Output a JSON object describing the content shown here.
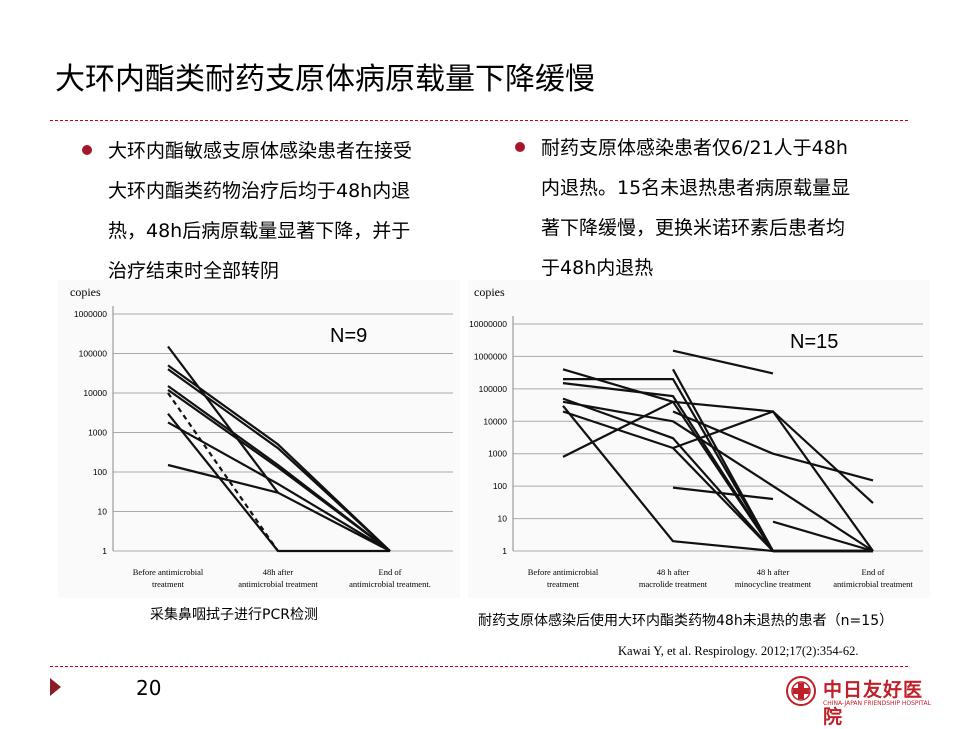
{
  "title": "大环内酯类耐药支原体病原载量下降缓慢",
  "bullets": {
    "left": [
      "大环内酯敏感支原体感染患者在接受",
      "大环内酯类药物治疗后均于48h内退",
      "热，48h后病原载量显著下降，并于",
      "治疗结束时全部转阴"
    ],
    "right": [
      "耐药支原体感染患者仅6/21人于48h",
      "内退热。15名未退热患者病原载量显",
      "著下降缓慢，更换米诺环素后患者均",
      "于48h内退热"
    ]
  },
  "colors": {
    "accent": "#c3001b",
    "bullet": "#a5182c",
    "logo": "#c0202a"
  },
  "chart_data": [
    {
      "type": "line",
      "ylabel": "copies",
      "scale": "log",
      "annotation": "N=9",
      "yticks": [
        "1",
        "10",
        "100",
        "1000",
        "10000",
        "100000",
        "1000000"
      ],
      "categories": [
        [
          "Before antimicrobial",
          "treatment"
        ],
        [
          "48h after",
          "antimicrobial treatment"
        ],
        [
          "End of",
          "antimicrobial treatment."
        ]
      ],
      "ylim": [
        1,
        3000000
      ],
      "series": [
        {
          "values": [
            150000,
            30,
            null
          ]
        },
        {
          "values": [
            50000,
            500,
            1
          ]
        },
        {
          "values": [
            40000,
            400,
            1
          ]
        },
        {
          "values": [
            15000,
            150,
            1
          ]
        },
        {
          "values": [
            12000,
            130,
            1
          ]
        },
        {
          "values": [
            3000,
            1,
            1
          ]
        },
        {
          "values": [
            1800,
            50,
            1
          ]
        },
        {
          "values": [
            150,
            30,
            1
          ]
        },
        {
          "values": [
            10000,
            1,
            null
          ],
          "style": "dashed"
        }
      ]
    },
    {
      "type": "line",
      "ylabel": "copies",
      "scale": "log",
      "annotation": "N=15",
      "yticks": [
        "1",
        "10",
        "100",
        "1000",
        "10000",
        "100000",
        "1000000",
        "10000000"
      ],
      "categories": [
        [
          "Before antimicrobial",
          "treatment"
        ],
        [
          "48 h after",
          "macrolide treatment"
        ],
        [
          "48 h after",
          "minocycline treatment"
        ],
        [
          "End of",
          "antimicrobial treatment"
        ]
      ],
      "ylim": [
        1,
        20000000
      ],
      "series": [
        {
          "values": [
            400000,
            40000,
            1,
            1
          ]
        },
        {
          "values": [
            200000,
            200000,
            1,
            1
          ]
        },
        {
          "values": [
            150000,
            60000,
            1,
            1
          ]
        },
        {
          "values": [
            50000,
            3000,
            1,
            1
          ]
        },
        {
          "values": [
            40000,
            10000,
            100,
            1
          ]
        },
        {
          "values": [
            30000,
            2,
            1,
            1
          ]
        },
        {
          "values": [
            20000,
            1500,
            1,
            1
          ]
        },
        {
          "values": [
            800,
            40000,
            20000,
            30
          ]
        },
        {
          "values": [
            null,
            1500,
            20000,
            1
          ]
        },
        {
          "values": [
            null,
            20000,
            1000,
            150
          ]
        },
        {
          "values": [
            null,
            1500000,
            300000,
            null
          ]
        },
        {
          "values": [
            null,
            90,
            40,
            null
          ]
        },
        {
          "values": [
            null,
            10,
            null,
            null
          ]
        },
        {
          "values": [
            null,
            null,
            8,
            1
          ]
        },
        {
          "values": [
            null,
            400000,
            1,
            1
          ]
        }
      ]
    }
  ],
  "captions": {
    "left": "采集鼻咽拭子进行PCR检测",
    "right": "耐药支原体感染后使用大环内酯类药物48h未退热的患者（n=15）"
  },
  "reference": "Kawai Y, et al. Respirology. 2012;17(2):354-62.",
  "page_number": "20",
  "logo": {
    "name_cn": "中日友好医院",
    "name_en": "CHINA-JAPAN FRIENDSHIP HOSPITAL"
  }
}
